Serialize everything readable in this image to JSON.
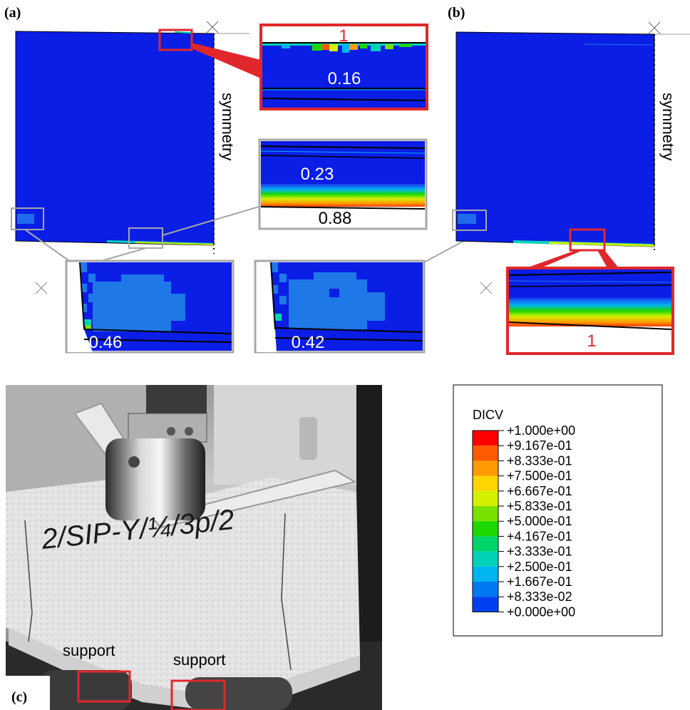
{
  "panels": {
    "a": "(a)",
    "b": "(b)",
    "c": "(c)"
  },
  "symmetry_label": "symmetry",
  "zoom_values": {
    "a_top": "1",
    "a_top_inner": "0.16",
    "a_mid_upper": "0.23",
    "a_mid_lower": "0.88",
    "a_bottom_left": "0.46",
    "a_bottom_right": "0.42",
    "b_bottom": "1"
  },
  "photo": {
    "specimen_marking": "2/SIP-Y/¼/3p/2",
    "support_left": "support",
    "support_right": "support"
  },
  "legend": {
    "title": "DICV",
    "levels": [
      "+1.000e+00",
      "+9.167e-01",
      "+8.333e-01",
      "+7.500e-01",
      "+6.667e-01",
      "+5.833e-01",
      "+5.000e-01",
      "+4.167e-01",
      "+3.333e-01",
      "+2.500e-01",
      "+1.667e-01",
      "+8.333e-02",
      "+0.000e+00"
    ],
    "colors": [
      "#ff0000",
      "#ff5a00",
      "#ff9a00",
      "#ffd400",
      "#d4f000",
      "#7ae000",
      "#1cd800",
      "#00d46a",
      "#00d2b8",
      "#00b4f0",
      "#0078f0",
      "#0040f0"
    ]
  },
  "colors": {
    "mesh_blue": "#0a1ee6",
    "highlight_red": "#e0282c",
    "zoom_gray": "#a8a8a8"
  }
}
